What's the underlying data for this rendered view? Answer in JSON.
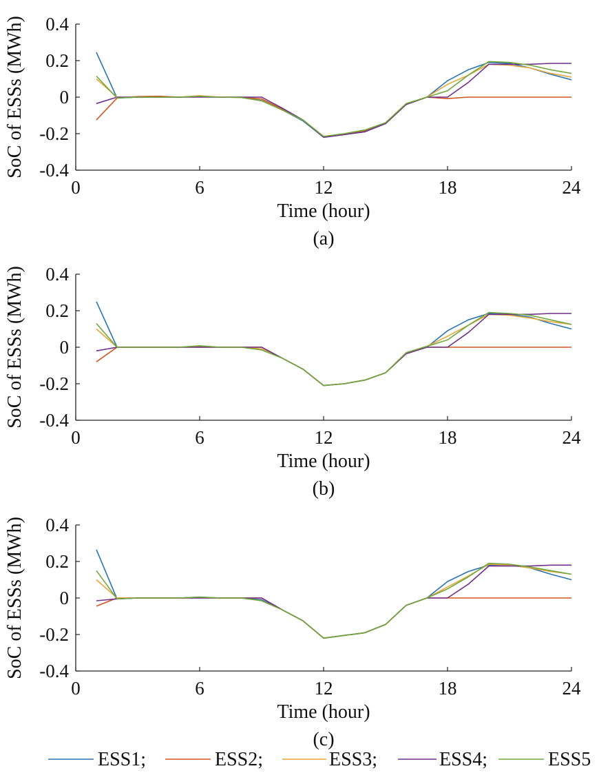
{
  "colors": {
    "ESS1": "#2a72b6",
    "ESS2": "#d2561f",
    "ESS3": "#e8a73a",
    "ESS4": "#6f2f8a",
    "ESS5": "#6fa83d"
  },
  "legend": [
    "ESS1;",
    "ESS2;",
    "ESS3;",
    "ESS4;",
    "ESS5"
  ],
  "chart_data": [
    {
      "type": "line",
      "caption": "(a)",
      "xlabel": "Time (hour)",
      "ylabel": "SoC of ESSs (MWh)",
      "xlim": [
        0,
        24
      ],
      "ylim": [
        -0.4,
        0.4
      ],
      "xticks": [
        0,
        6,
        12,
        18,
        24
      ],
      "yticks": [
        0.4,
        0.2,
        0,
        -0.2,
        -0.4
      ],
      "xtick_labels": [
        "0",
        "6",
        "12",
        "18",
        "24"
      ],
      "ytick_labels": [
        "0.4",
        "0.2",
        "0",
        "-0.2",
        "-0.4"
      ],
      "x": [
        1,
        2,
        3,
        4,
        5,
        6,
        7,
        8,
        9,
        10,
        11,
        12,
        13,
        14,
        15,
        16,
        17,
        18,
        19,
        20,
        21,
        22,
        23,
        24
      ],
      "series": [
        {
          "name": "ESS1",
          "values": [
            0.245,
            -0.005,
            0.0,
            0.002,
            0.0,
            0.005,
            0.0,
            -0.002,
            -0.018,
            -0.07,
            -0.13,
            -0.22,
            -0.205,
            -0.19,
            -0.145,
            -0.04,
            0.0,
            0.09,
            0.15,
            0.19,
            0.185,
            0.16,
            0.125,
            0.095
          ]
        },
        {
          "name": "ESS2",
          "values": [
            -0.125,
            -0.005,
            0.003,
            0.005,
            0.0,
            0.003,
            0.0,
            0.0,
            -0.01,
            -0.065,
            -0.125,
            -0.215,
            -0.205,
            -0.185,
            -0.145,
            -0.04,
            0.0,
            -0.008,
            0.0,
            0.0,
            0.0,
            0.0,
            0.0,
            0.0
          ]
        },
        {
          "name": "ESS3",
          "values": [
            0.1,
            0.0,
            0.0,
            0.0,
            0.0,
            0.008,
            0.0,
            -0.002,
            -0.02,
            -0.07,
            -0.125,
            -0.215,
            -0.2,
            -0.18,
            -0.14,
            -0.035,
            0.0,
            0.07,
            0.12,
            0.18,
            0.175,
            0.16,
            0.13,
            0.11
          ]
        },
        {
          "name": "ESS4",
          "values": [
            -0.035,
            0.0,
            0.0,
            0.0,
            0.0,
            0.0,
            0.0,
            0.0,
            0.0,
            -0.06,
            -0.125,
            -0.22,
            -0.205,
            -0.19,
            -0.145,
            -0.04,
            0.0,
            0.0,
            0.08,
            0.18,
            0.18,
            0.18,
            0.185,
            0.185
          ]
        },
        {
          "name": "ESS5",
          "values": [
            0.115,
            -0.005,
            0.0,
            0.0,
            0.0,
            0.005,
            0.0,
            -0.002,
            -0.02,
            -0.07,
            -0.125,
            -0.215,
            -0.2,
            -0.18,
            -0.14,
            -0.035,
            0.0,
            0.035,
            0.12,
            0.195,
            0.19,
            0.175,
            0.15,
            0.13
          ]
        }
      ]
    },
    {
      "type": "line",
      "caption": "(b)",
      "xlabel": "Time (hour)",
      "ylabel": "SoC of ESSs (MWh)",
      "xlim": [
        0,
        24
      ],
      "ylim": [
        -0.4,
        0.4
      ],
      "xticks": [
        0,
        6,
        12,
        18,
        24
      ],
      "yticks": [
        0.4,
        0.2,
        0,
        -0.2,
        -0.4
      ],
      "xtick_labels": [
        "0",
        "6",
        "12",
        "18",
        "24"
      ],
      "ytick_labels": [
        "0.4",
        "0.2",
        "0",
        "-0.2",
        "-0.4"
      ],
      "x": [
        1,
        2,
        3,
        4,
        5,
        6,
        7,
        8,
        9,
        10,
        11,
        12,
        13,
        14,
        15,
        16,
        17,
        18,
        19,
        20,
        21,
        22,
        23,
        24
      ],
      "series": [
        {
          "name": "ESS1",
          "values": [
            0.25,
            0.0,
            0.0,
            0.0,
            0.0,
            0.005,
            0.0,
            0.0,
            -0.01,
            -0.06,
            -0.12,
            -0.21,
            -0.2,
            -0.18,
            -0.14,
            -0.035,
            0.0,
            0.09,
            0.15,
            0.185,
            0.18,
            0.165,
            0.13,
            0.1
          ]
        },
        {
          "name": "ESS2",
          "values": [
            -0.08,
            0.0,
            0.0,
            0.0,
            0.0,
            0.0,
            0.0,
            0.0,
            0.0,
            -0.06,
            -0.12,
            -0.21,
            -0.2,
            -0.18,
            -0.14,
            -0.035,
            0.0,
            0.0,
            0.0,
            0.0,
            0.0,
            0.0,
            0.0,
            0.0
          ]
        },
        {
          "name": "ESS3",
          "values": [
            0.1,
            0.0,
            0.0,
            0.0,
            0.0,
            0.008,
            0.0,
            0.0,
            -0.01,
            -0.06,
            -0.12,
            -0.21,
            -0.2,
            -0.18,
            -0.14,
            -0.03,
            0.005,
            0.06,
            0.12,
            0.18,
            0.175,
            0.16,
            0.14,
            0.125
          ]
        },
        {
          "name": "ESS4",
          "values": [
            -0.02,
            0.0,
            0.0,
            0.0,
            0.0,
            0.0,
            0.0,
            0.0,
            0.0,
            -0.06,
            -0.12,
            -0.21,
            -0.2,
            -0.18,
            -0.14,
            -0.035,
            0.0,
            0.0,
            0.08,
            0.18,
            0.18,
            0.18,
            0.185,
            0.185
          ]
        },
        {
          "name": "ESS5",
          "values": [
            0.13,
            0.0,
            0.0,
            0.0,
            0.0,
            0.008,
            0.0,
            0.0,
            -0.015,
            -0.06,
            -0.12,
            -0.21,
            -0.2,
            -0.18,
            -0.14,
            -0.03,
            0.005,
            0.04,
            0.12,
            0.19,
            0.185,
            0.175,
            0.15,
            0.125
          ]
        }
      ]
    },
    {
      "type": "line",
      "caption": "(c)",
      "xlabel": "Time (hour)",
      "ylabel": "SoC of ESSs (MWh)",
      "xlim": [
        0,
        24
      ],
      "ylim": [
        -0.4,
        0.4
      ],
      "xticks": [
        0,
        6,
        12,
        18,
        24
      ],
      "yticks": [
        0.4,
        0.2,
        0,
        -0.2,
        -0.4
      ],
      "xtick_labels": [
        "0",
        "6",
        "12",
        "18",
        "24"
      ],
      "ytick_labels": [
        "0.4",
        "0.2",
        "0",
        "-0.2",
        "-0.4"
      ],
      "x": [
        1,
        2,
        3,
        4,
        5,
        6,
        7,
        8,
        9,
        10,
        11,
        12,
        13,
        14,
        15,
        16,
        17,
        18,
        19,
        20,
        21,
        22,
        23,
        24
      ],
      "series": [
        {
          "name": "ESS1",
          "values": [
            0.265,
            -0.005,
            0.0,
            0.0,
            0.0,
            0.005,
            0.0,
            0.0,
            -0.01,
            -0.065,
            -0.125,
            -0.22,
            -0.205,
            -0.19,
            -0.145,
            -0.04,
            0.0,
            0.09,
            0.145,
            0.18,
            0.18,
            0.165,
            0.13,
            0.1
          ]
        },
        {
          "name": "ESS2",
          "values": [
            -0.045,
            0.0,
            0.0,
            0.0,
            0.0,
            0.0,
            0.0,
            0.0,
            0.0,
            -0.065,
            -0.125,
            -0.22,
            -0.205,
            -0.19,
            -0.145,
            -0.04,
            0.0,
            0.0,
            0.0,
            0.0,
            0.0,
            0.0,
            0.0,
            0.0
          ]
        },
        {
          "name": "ESS3",
          "values": [
            0.1,
            0.0,
            0.0,
            0.0,
            0.0,
            0.005,
            0.0,
            0.0,
            -0.015,
            -0.065,
            -0.125,
            -0.22,
            -0.205,
            -0.19,
            -0.145,
            -0.04,
            0.0,
            0.06,
            0.12,
            0.185,
            0.18,
            0.165,
            0.145,
            0.13
          ]
        },
        {
          "name": "ESS4",
          "values": [
            -0.015,
            -0.005,
            0.0,
            0.0,
            0.0,
            0.0,
            0.0,
            0.0,
            0.0,
            -0.065,
            -0.125,
            -0.22,
            -0.205,
            -0.19,
            -0.145,
            -0.04,
            0.0,
            0.0,
            0.075,
            0.175,
            0.175,
            0.175,
            0.18,
            0.18
          ]
        },
        {
          "name": "ESS5",
          "values": [
            0.15,
            -0.005,
            0.0,
            0.0,
            0.0,
            0.005,
            0.0,
            0.0,
            -0.015,
            -0.065,
            -0.125,
            -0.22,
            -0.205,
            -0.19,
            -0.145,
            -0.04,
            0.0,
            0.05,
            0.115,
            0.19,
            0.185,
            0.17,
            0.15,
            0.13
          ]
        }
      ]
    }
  ]
}
